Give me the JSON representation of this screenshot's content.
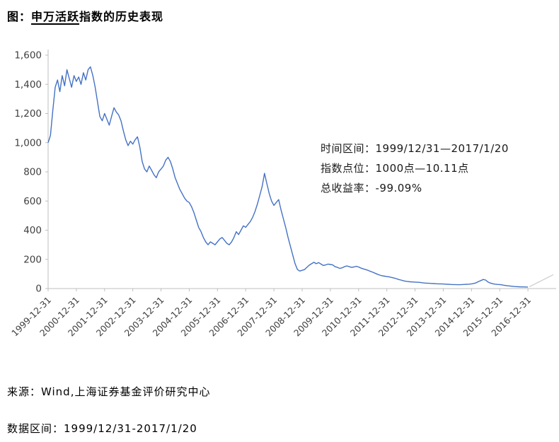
{
  "title": {
    "prefix": "图：",
    "underlined": "申万活跃",
    "suffix": "指数的历史表现"
  },
  "annotation": {
    "line1": "时间区间：1999/12/31—2017/1/20",
    "line2": "指数点位：1000点—10.11点",
    "line3": "总收益率：-99.09%"
  },
  "footer": {
    "source": "来源：Wind,上海证券基金评价研究中心",
    "data_range": "数据区间：1999/12/31-2017/1/20"
  },
  "chart_data": {
    "type": "line",
    "title": "申万活跃指数的历史表现",
    "legend": "none",
    "grid": false,
    "line_color": "#4472c4",
    "axis_color": "#bfbfbf",
    "tick_label_color": "#3f3f3f",
    "x_domain": [
      2000,
      2018
    ],
    "y_domain": [
      0,
      1600
    ],
    "ylim": [
      0,
      1600
    ],
    "y_ticks": [
      "0",
      "200",
      "400",
      "600",
      "800",
      "1,000",
      "1,200",
      "1,400",
      "1,600"
    ],
    "y_tick_values": [
      0,
      200,
      400,
      600,
      800,
      1000,
      1200,
      1400,
      1600
    ],
    "x_tick_labels": [
      "1999-12-31",
      "2000-12-31",
      "2001-12-31",
      "2002-12-31",
      "2003-12-31",
      "2004-12-31",
      "2005-12-31",
      "2006-12-31",
      "2007-12-31",
      "2008-12-31",
      "2009-12-31",
      "2010-12-31",
      "2011-12-31",
      "2012-12-31",
      "2013-12-31",
      "2014-12-31",
      "2015-12-31",
      "2016-12-31"
    ],
    "x_tick_values": [
      2000,
      2001,
      2002,
      2003,
      2004,
      2005,
      2006,
      2007,
      2008,
      2009,
      2010,
      2011,
      2012,
      2013,
      2014,
      2015,
      2016,
      2017
    ],
    "series": [
      {
        "name": "申万活跃指数",
        "x_start": 2000.0,
        "x_step_years": 0.0833333,
        "values": [
          1000,
          1050,
          1220,
          1380,
          1430,
          1350,
          1460,
          1390,
          1500,
          1440,
          1380,
          1460,
          1420,
          1450,
          1400,
          1480,
          1430,
          1500,
          1520,
          1460,
          1380,
          1280,
          1180,
          1150,
          1200,
          1160,
          1120,
          1180,
          1240,
          1210,
          1190,
          1150,
          1080,
          1020,
          980,
          1010,
          990,
          1020,
          1040,
          970,
          870,
          820,
          800,
          840,
          810,
          780,
          760,
          800,
          820,
          840,
          880,
          900,
          870,
          820,
          760,
          720,
          680,
          650,
          620,
          600,
          590,
          560,
          520,
          470,
          420,
          390,
          350,
          320,
          300,
          320,
          310,
          300,
          320,
          340,
          350,
          330,
          310,
          300,
          320,
          350,
          390,
          370,
          400,
          430,
          420,
          440,
          460,
          490,
          530,
          580,
          640,
          700,
          790,
          720,
          650,
          600,
          570,
          590,
          610,
          540,
          480,
          420,
          350,
          290,
          230,
          170,
          130,
          120,
          125,
          130,
          145,
          160,
          170,
          180,
          170,
          178,
          168,
          158,
          162,
          168,
          165,
          162,
          150,
          145,
          138,
          142,
          150,
          155,
          150,
          145,
          148,
          152,
          148,
          140,
          135,
          130,
          125,
          118,
          112,
          105,
          98,
          92,
          88,
          85,
          82,
          80,
          76,
          72,
          68,
          62,
          58,
          54,
          50,
          48,
          46,
          45,
          44,
          43,
          42,
          40,
          38,
          37,
          36,
          35,
          34,
          33,
          32,
          32,
          31,
          30,
          29,
          28,
          27,
          27,
          26,
          26,
          27,
          28,
          29,
          30,
          32,
          35,
          40,
          48,
          55,
          62,
          58,
          45,
          38,
          33,
          30,
          28,
          27,
          25,
          22,
          20,
          18,
          16,
          14,
          13,
          12,
          11,
          11,
          10.5,
          10.11
        ]
      }
    ],
    "start_value": 1000,
    "end_value": 10.11,
    "gray_tail": {
      "color": "#c9c9c9",
      "points": [
        [
          2017.05,
          12
        ],
        [
          2017.9,
          95
        ]
      ]
    }
  }
}
